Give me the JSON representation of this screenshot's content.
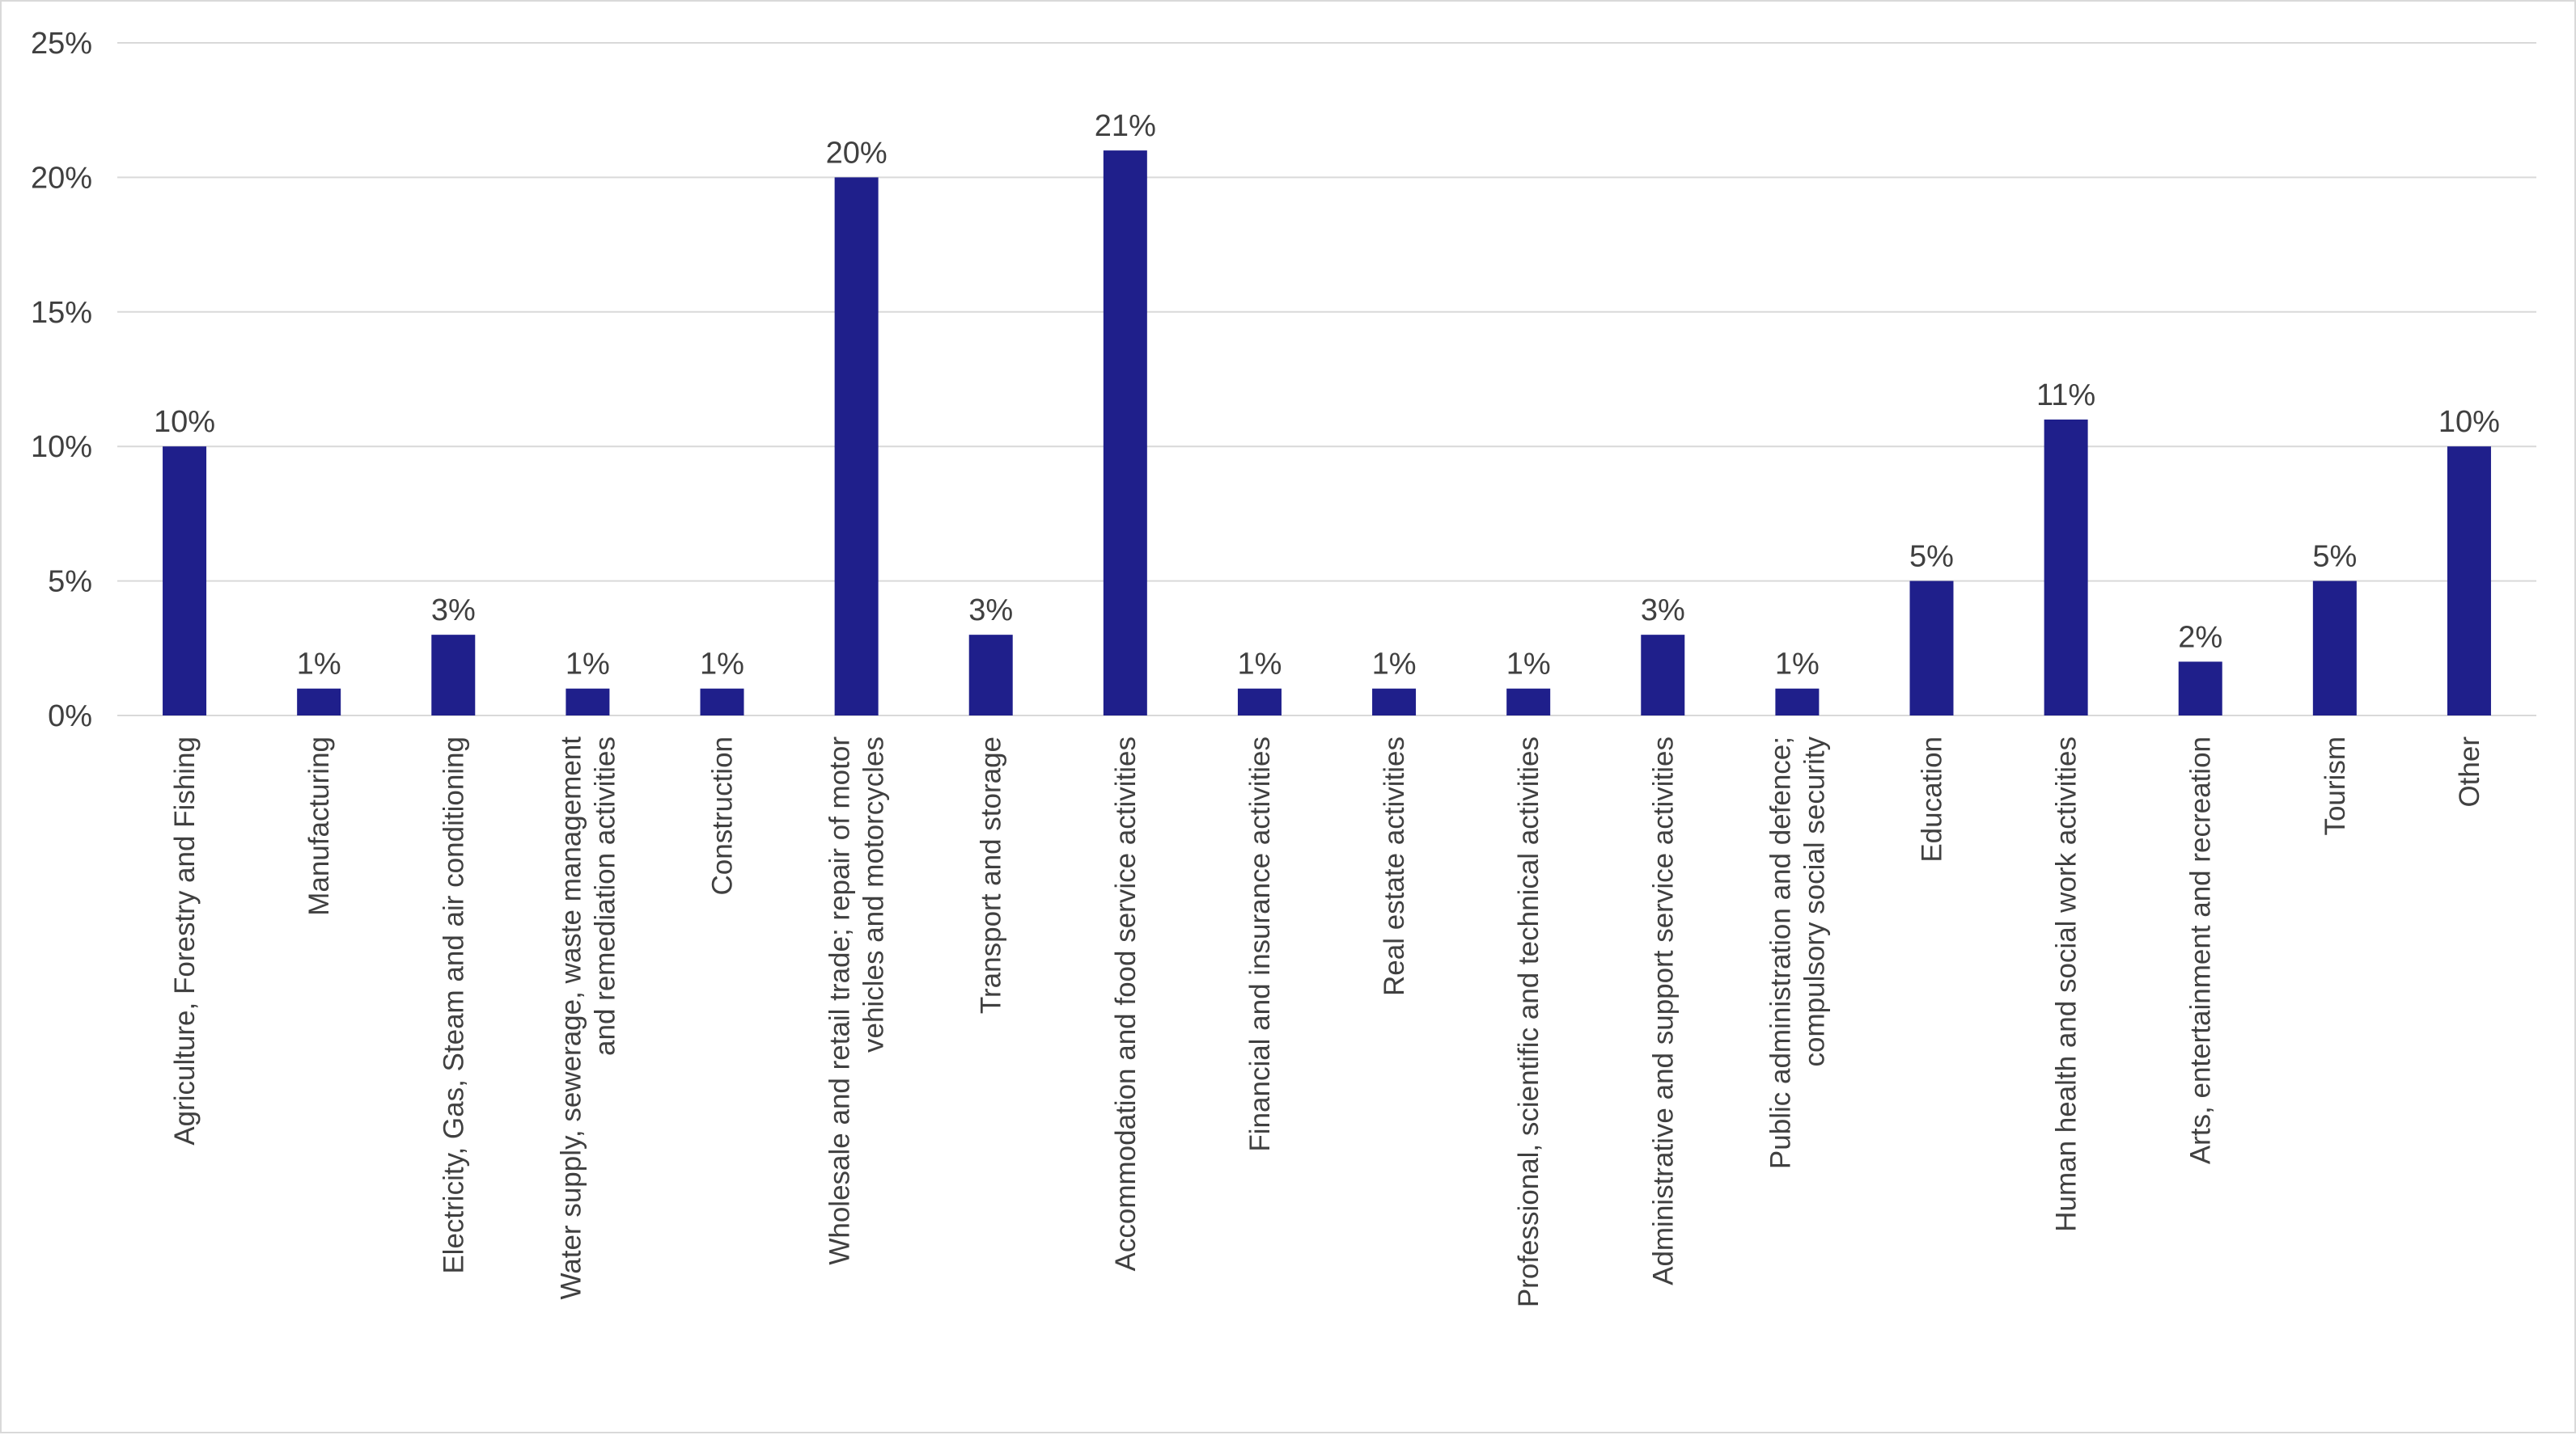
{
  "chart_data": {
    "type": "bar",
    "title": "",
    "xlabel": "",
    "ylabel": "",
    "ylim": [
      0,
      25
    ],
    "y_ticks": [
      "0%",
      "5%",
      "10%",
      "15%",
      "20%",
      "25%"
    ],
    "y_tick_values": [
      0,
      5,
      10,
      15,
      20,
      25
    ],
    "grid": true,
    "legend": "none",
    "bar_color": "#1f1f8b",
    "grid_color": "#d9d9d9",
    "categories": [
      [
        "Agriculture, Forestry and Fishing"
      ],
      [
        "Manufacturing"
      ],
      [
        "Electricity, Gas, Steam and air conditioning"
      ],
      [
        "Water supply, sewerage, waste management",
        "and remediation activities"
      ],
      [
        "Construction"
      ],
      [
        "Wholesale and retail trade; repair of motor",
        "vehicles and motorcycles"
      ],
      [
        "Transport and storage"
      ],
      [
        "Accommodation and food service activities"
      ],
      [
        "Financial and insurance activities"
      ],
      [
        "Real estate activities"
      ],
      [
        "Professional, scientific and technical activities"
      ],
      [
        "Administrative and support service activities"
      ],
      [
        "Public administration and defence;",
        "compulsory social security"
      ],
      [
        "Education"
      ],
      [
        "Human health and social work activities"
      ],
      [
        "Arts, entertainment and recreation"
      ],
      [
        "Tourism"
      ],
      [
        "Other"
      ]
    ],
    "values": [
      10,
      1,
      3,
      1,
      1,
      20,
      3,
      21,
      1,
      1,
      1,
      3,
      1,
      5,
      11,
      2,
      5,
      10
    ],
    "data_labels": [
      "10%",
      "1%",
      "3%",
      "1%",
      "1%",
      "20%",
      "3%",
      "21%",
      "1%",
      "1%",
      "1%",
      "3%",
      "1%",
      "5%",
      "11%",
      "2%",
      "5%",
      "10%"
    ]
  }
}
